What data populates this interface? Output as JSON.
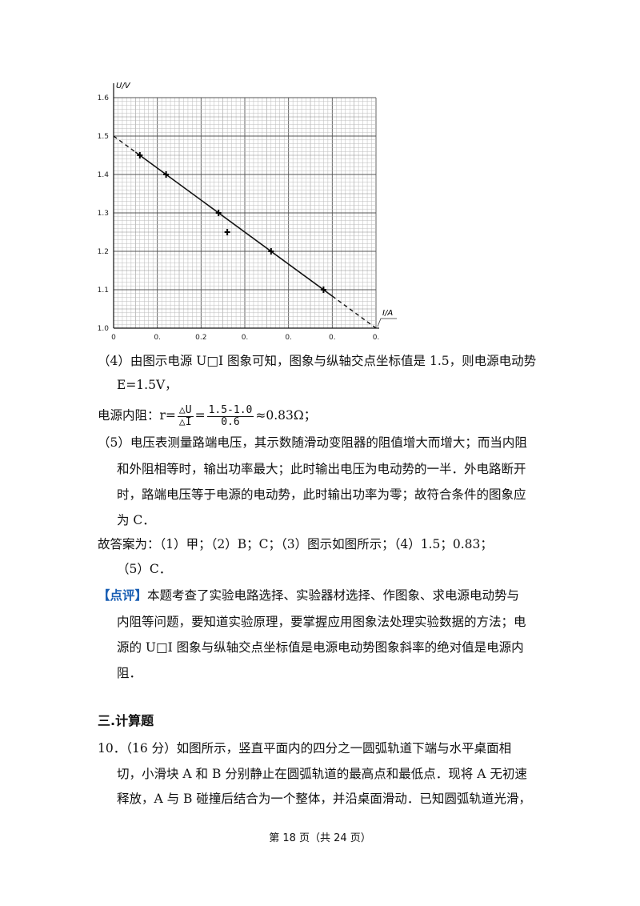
{
  "chart_data": {
    "type": "line",
    "ylabel": "U/V",
    "xlabel": "I/A",
    "xlim": [
      0,
      0.6
    ],
    "ylim": [
      1.0,
      1.6
    ],
    "y_ticks": [
      "1.0",
      "1.1",
      "1.2",
      "1.3",
      "1.4",
      "1.5",
      "1.6"
    ],
    "x_ticks": [
      "0",
      "0.",
      "0.2",
      "0.",
      "0.",
      "0.",
      "0."
    ],
    "y_tick_values": [
      1.0,
      1.1,
      1.2,
      1.3,
      1.4,
      1.5,
      1.6
    ],
    "x_tick_values": [
      0,
      0.1,
      0.2,
      0.3,
      0.4,
      0.5,
      0.6
    ],
    "series": [
      {
        "points": [
          {
            "x": 0.06,
            "y": 1.45
          },
          {
            "x": 0.12,
            "y": 1.4
          },
          {
            "x": 0.24,
            "y": 1.3
          },
          {
            "x": 0.26,
            "y": 1.25
          },
          {
            "x": 0.36,
            "y": 1.2
          },
          {
            "x": 0.48,
            "y": 1.1
          }
        ]
      }
    ],
    "fit_line": {
      "x": [
        0,
        0.6
      ],
      "y": [
        1.5,
        1.0
      ]
    },
    "grid": true
  },
  "text": {
    "p4_line1": "（4）由图示电源 U□I 图象可知，图象与纵轴交点坐标值是 1.5，则电源电动势",
    "p4_line2": "E=1.5V，",
    "p4_r_prefix": "电源内阻：r=",
    "p4_r_num1": "△U",
    "p4_r_den1": "△I",
    "p4_r_eq": "=",
    "p4_r_num2": "1.5-1.0",
    "p4_r_den2": "0.6",
    "p4_r_result": "≈0.83Ω；",
    "p5_line1": "（5）电压表测量路端电压，其示数随滑动变阻器的阻值增大而增大；而当内阻",
    "p5_line2": "和外阻相等时，输出功率最大；此时输出电压为电动势的一半．外电路断开",
    "p5_line3": "时，路端电压等于电源的电动势，此时输出功率为零；故符合条件的图象应",
    "p5_line4": "为 C．",
    "ans_line1": "故答案为：（1）甲；（2）B；C；（3）图示如图所示；（4）1.5；0.83；",
    "ans_line2": "（5）C．",
    "comment_tag": "【点评】",
    "comment_line1": "本题考查了实验电路选择、实验器材选择、作图象、求电源电动势与",
    "comment_line2": "内阻等问题，要知道实验原理，要掌握应用图象法处理实验数据的方法；电",
    "comment_line3": "源的 U□I 图象与纵轴交点坐标值是电源电动势图象斜率的绝对值是电源内",
    "comment_line4": "阻．",
    "section_title": "三.计算题",
    "q10_line1": "10．（16 分）如图所示，竖直平面内的四分之一圆弧轨道下端与水平桌面相",
    "q10_line2": "切，小滑块 A 和 B 分别静止在圆弧轨道的最高点和最低点．现将 A 无初速",
    "q10_line3": "释放，A 与 B 碰撞后结合为一个整体，并沿桌面滑动．已知圆弧轨道光滑，",
    "footer": "第 18 页（共 24 页）"
  }
}
